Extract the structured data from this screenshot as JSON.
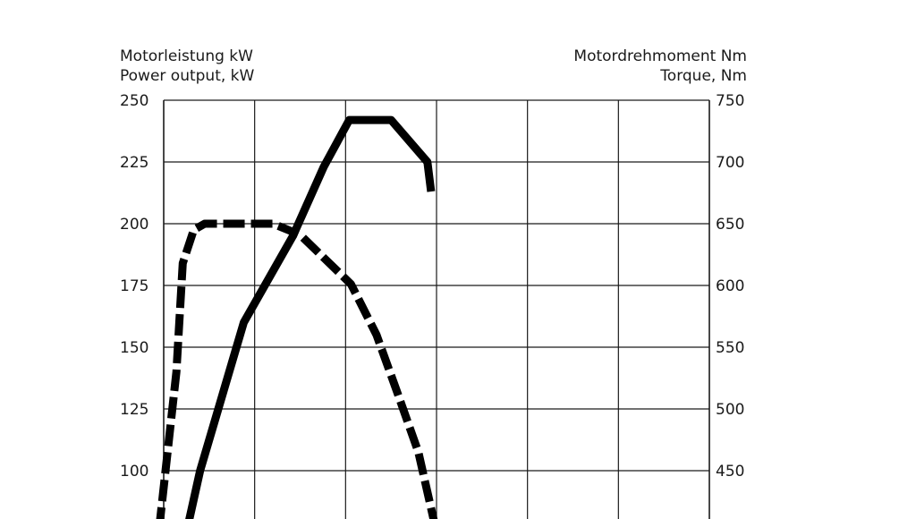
{
  "chart_data": {
    "type": "line",
    "left_axis": {
      "title_lines": [
        "Motorleistung kW",
        "Power output, kW"
      ],
      "ticks": [
        250,
        225,
        200,
        175,
        150,
        125,
        100
      ],
      "ylim": [
        75,
        250
      ]
    },
    "right_axis": {
      "title_lines": [
        "Motordrehmoment Nm",
        "Torque, Nm"
      ],
      "ticks": [
        750,
        700,
        650,
        600,
        550,
        500,
        450
      ],
      "ylim": [
        400,
        750
      ]
    },
    "grid": true,
    "series": [
      {
        "axis": "left",
        "style": "solid",
        "points": [
          [
            0.25,
            75
          ],
          [
            0.4,
            100
          ],
          [
            0.88,
            160
          ],
          [
            1.42,
            195
          ],
          [
            1.76,
            223
          ],
          [
            2.04,
            242
          ],
          [
            2.5,
            242
          ],
          [
            2.9,
            225
          ],
          [
            2.94,
            213
          ]
        ]
      },
      {
        "axis": "right",
        "style": "dashed",
        "points": [
          [
            -0.05,
            403
          ],
          [
            0.14,
            530
          ],
          [
            0.21,
            618
          ],
          [
            0.33,
            645
          ],
          [
            0.45,
            650
          ],
          [
            1.2,
            650
          ],
          [
            1.5,
            641
          ],
          [
            2.06,
            601
          ],
          [
            2.34,
            560
          ],
          [
            2.56,
            515
          ],
          [
            2.8,
            465
          ],
          [
            3.0,
            400
          ]
        ]
      }
    ]
  }
}
